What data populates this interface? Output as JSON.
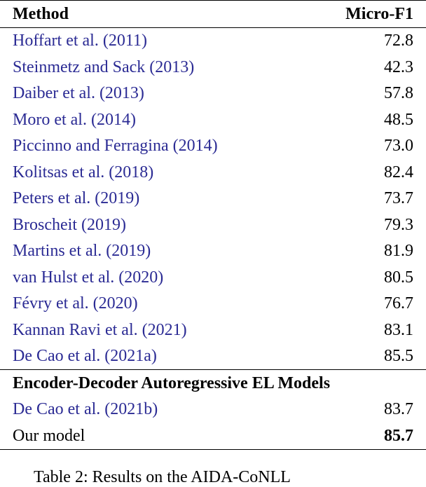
{
  "table": {
    "header": [
      "Method",
      "Micro-F1"
    ],
    "rows": [
      [
        "Hoffart et al. (2011)",
        "72.8"
      ],
      [
        "Steinmetz and Sack (2013)",
        "42.3"
      ],
      [
        "Daiber et al. (2013)",
        "57.8"
      ],
      [
        "Moro et al. (2014)",
        "48.5"
      ],
      [
        "Piccinno and Ferragina (2014)",
        "73.0"
      ],
      [
        "Kolitsas et al. (2018)",
        "82.4"
      ],
      [
        "Peters et al. (2019)",
        "73.7"
      ],
      [
        "Broscheit (2019)",
        "79.3"
      ],
      [
        "Martins et al. (2019)",
        "81.9"
      ],
      [
        "van Hulst et al. (2020)",
        "80.5"
      ],
      [
        "Févry et al. (2020)",
        "76.7"
      ],
      [
        "Kannan Ravi et al. (2021)",
        "83.1"
      ],
      [
        "De Cao et al. (2021a)",
        "85.5"
      ]
    ],
    "section": "Encoder-Decoder Autoregressive EL Models",
    "section_rows": [
      [
        "De Cao et al. (2021b)",
        "83.7"
      ],
      [
        "Our model",
        "85.7"
      ]
    ]
  },
  "caption": "Table 2: Results on the AIDA-CoNLL"
}
